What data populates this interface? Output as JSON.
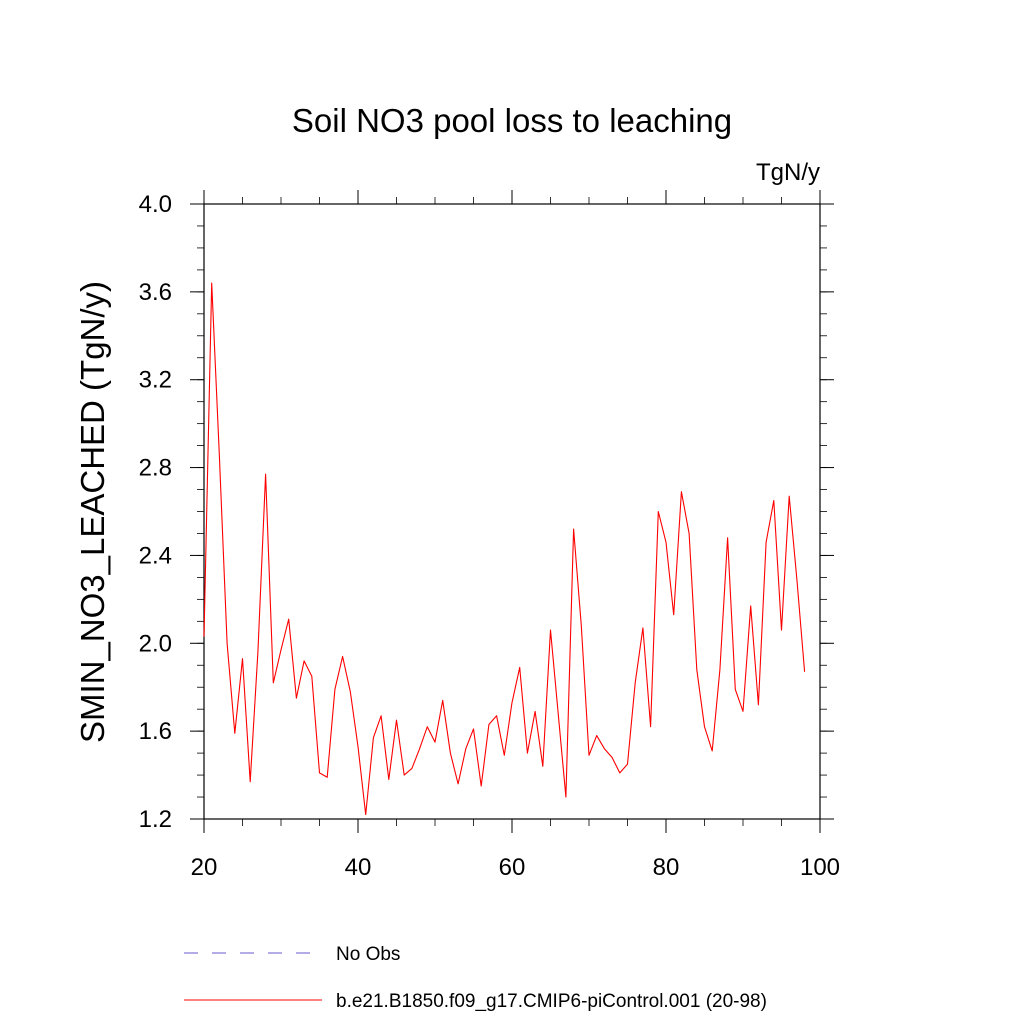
{
  "chart_data": {
    "type": "line",
    "title": "Soil NO3 pool loss to leaching",
    "units_label": "TgN/y",
    "xlabel": "",
    "ylabel": "SMIN_NO3_LEACHED  (TgN/y)",
    "xlim": [
      20,
      100
    ],
    "ylim": [
      1.2,
      4.0
    ],
    "x_ticks": [
      20,
      40,
      60,
      80,
      100
    ],
    "x_tick_labels": [
      "20",
      "40",
      "60",
      "80",
      "100"
    ],
    "y_ticks": [
      1.2,
      1.6,
      2.0,
      2.4,
      2.8,
      3.2,
      3.6,
      4.0
    ],
    "y_tick_labels": [
      "1.2",
      "1.6",
      "2.0",
      "2.4",
      "2.8",
      "3.2",
      "3.6",
      "4.0"
    ],
    "series": [
      {
        "name": "b.e21.B1850.f09_g17.CMIP6-piControl.001 (20-98)",
        "color": "#ff0000",
        "style": "solid",
        "x": [
          20,
          21,
          22,
          23,
          24,
          25,
          26,
          27,
          28,
          29,
          30,
          31,
          32,
          33,
          34,
          35,
          36,
          37,
          38,
          39,
          40,
          41,
          42,
          43,
          44,
          45,
          46,
          47,
          48,
          49,
          50,
          51,
          52,
          53,
          54,
          55,
          56,
          57,
          58,
          59,
          60,
          61,
          62,
          63,
          64,
          65,
          66,
          67,
          68,
          69,
          70,
          71,
          72,
          73,
          74,
          75,
          76,
          77,
          78,
          79,
          80,
          81,
          82,
          83,
          84,
          85,
          86,
          87,
          88,
          89,
          90,
          91,
          92,
          93,
          94,
          95,
          96,
          97,
          98
        ],
        "values": [
          2.03,
          3.64,
          2.85,
          2.0,
          1.59,
          1.93,
          1.37,
          1.96,
          2.77,
          1.82,
          1.97,
          2.11,
          1.75,
          1.92,
          1.85,
          1.41,
          1.39,
          1.79,
          1.94,
          1.78,
          1.53,
          1.22,
          1.57,
          1.67,
          1.38,
          1.65,
          1.4,
          1.43,
          1.52,
          1.62,
          1.55,
          1.74,
          1.5,
          1.36,
          1.52,
          1.61,
          1.35,
          1.63,
          1.67,
          1.49,
          1.73,
          1.89,
          1.5,
          1.69,
          1.44,
          2.06,
          1.68,
          1.3,
          2.52,
          2.08,
          1.49,
          1.58,
          1.52,
          1.48,
          1.41,
          1.45,
          1.82,
          2.07,
          1.62,
          2.6,
          2.46,
          2.13,
          2.69,
          2.5,
          1.88,
          1.62,
          1.51,
          1.88,
          2.48,
          1.79,
          1.69,
          2.17,
          1.72,
          2.46,
          2.65,
          2.06,
          2.67,
          2.29,
          1.87
        ]
      }
    ],
    "legend": [
      {
        "label": "No Obs",
        "color": "#6a5acd",
        "style": "dashed"
      },
      {
        "label": "b.e21.B1850.f09_g17.CMIP6-piControl.001 (20-98)",
        "color": "#ff0000",
        "style": "solid"
      }
    ]
  }
}
